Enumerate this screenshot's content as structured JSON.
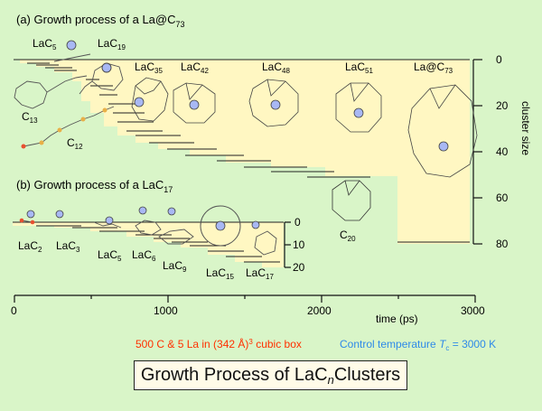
{
  "panel_a": {
    "title_prefix": "(a) Growth process of a La@C",
    "title_sub": "73",
    "labels": [
      {
        "base": "LaC",
        "sub": "5"
      },
      {
        "base": "LaC",
        "sub": "19"
      },
      {
        "base": "LaC",
        "sub": "35"
      },
      {
        "base": "LaC",
        "sub": "42"
      },
      {
        "base": "LaC",
        "sub": "48"
      },
      {
        "base": "LaC",
        "sub": "51"
      },
      {
        "base": "La@C",
        "sub": "73"
      },
      {
        "base": "C",
        "sub": "13"
      },
      {
        "base": "C",
        "sub": "12"
      },
      {
        "base": "C",
        "sub": "20"
      }
    ],
    "axis_label": "cluster size",
    "ticks": [
      "0",
      "20",
      "40",
      "60",
      "80"
    ]
  },
  "panel_b": {
    "title": "(b) Growth process of a LaC",
    "title_sub": "17",
    "labels": [
      {
        "base": "LaC",
        "sub": "2"
      },
      {
        "base": "LaC",
        "sub": "3"
      },
      {
        "base": "LaC",
        "sub": "5"
      },
      {
        "base": "LaC",
        "sub": "6"
      },
      {
        "base": "LaC",
        "sub": "9"
      },
      {
        "base": "LaC",
        "sub": "15"
      },
      {
        "base": "LaC",
        "sub": "17"
      }
    ],
    "ticks": [
      "0",
      "10",
      "20"
    ]
  },
  "time_axis": {
    "ticks": [
      "0",
      "1000",
      "2000",
      "3000"
    ],
    "label": "time (ps)"
  },
  "conditions": {
    "left_part1": "500 C & 5 La in (342 Å)",
    "left_sup": "3",
    "left_part2": " cubic box",
    "right_part1": "Control temperature ",
    "right_T": "T",
    "right_sub": "c",
    "right_part2": " = 3000 K",
    "left_color": "#ff3000",
    "right_color": "#2f8ae8"
  },
  "footer_title": {
    "part1": "Growth Process of LaC",
    "sub": "n",
    "part2": " Clusters"
  },
  "colors": {
    "background": "#d9f5c8",
    "band_fill": "#fff7c2",
    "la_atom": "#a8b8f4",
    "carbon_atom": "#e8b048",
    "green_atom": "#9ed47a"
  }
}
